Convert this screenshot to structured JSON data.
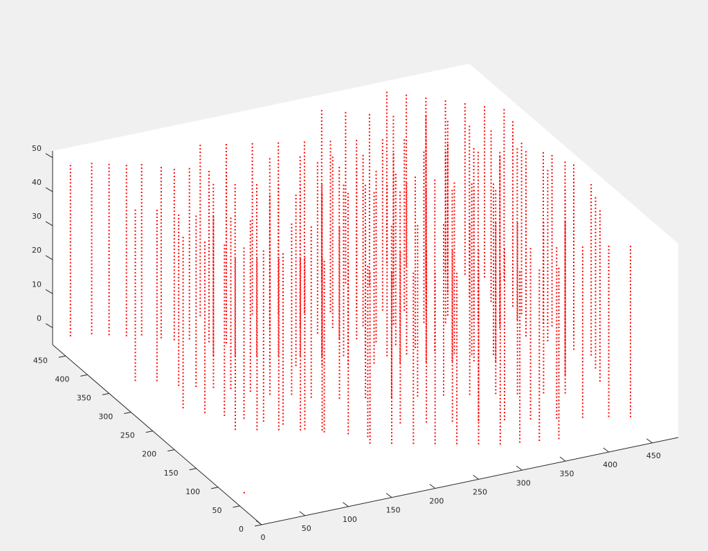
{
  "chart_data": {
    "type": "scatter",
    "projection": "3d",
    "title": "",
    "xlabel": "",
    "ylabel": "",
    "zlabel": "",
    "xlim": [
      0,
      480
    ],
    "ylim": [
      0,
      480
    ],
    "zlim": [
      -5,
      52
    ],
    "x_ticks": [
      "0",
      "50",
      "100",
      "150",
      "200",
      "250",
      "300",
      "350",
      "400",
      "450"
    ],
    "y_ticks": [
      "0",
      "50",
      "100",
      "150",
      "200",
      "250",
      "300",
      "350",
      "400",
      "450"
    ],
    "z_ticks": [
      "0",
      "10",
      "20",
      "30",
      "40",
      "50"
    ],
    "grid": false,
    "marker": "point",
    "marker_color": "#ff0000",
    "background_color": "#f0f0f0",
    "axes_color": "#ffffff",
    "series": [
      {
        "style": "dotted vertical columns, each spanning z from about 0 to 50",
        "points_per_column": 50,
        "columns_xy": [
          [
            8,
            455
          ],
          [
            30,
            450
          ],
          [
            45,
            440
          ],
          [
            60,
            430
          ],
          [
            75,
            425
          ],
          [
            90,
            410
          ],
          [
            100,
            400
          ],
          [
            115,
            395
          ],
          [
            130,
            380
          ],
          [
            145,
            370
          ],
          [
            20,
            330
          ],
          [
            40,
            320
          ],
          [
            55,
            300
          ],
          [
            70,
            290
          ],
          [
            85,
            280
          ],
          [
            100,
            270
          ],
          [
            115,
            255
          ],
          [
            130,
            240
          ],
          [
            150,
            230
          ],
          [
            165,
            215
          ],
          [
            35,
            250
          ],
          [
            50,
            230
          ],
          [
            65,
            215
          ],
          [
            80,
            200
          ],
          [
            95,
            185
          ],
          [
            110,
            170
          ],
          [
            125,
            150
          ],
          [
            140,
            135
          ],
          [
            160,
            120
          ],
          [
            175,
            105
          ],
          [
            150,
            440
          ],
          [
            175,
            430
          ],
          [
            200,
            420
          ],
          [
            225,
            410
          ],
          [
            250,
            400
          ],
          [
            275,
            390
          ],
          [
            300,
            380
          ],
          [
            325,
            370
          ],
          [
            345,
            360
          ],
          [
            365,
            350
          ],
          [
            160,
            300
          ],
          [
            185,
            290
          ],
          [
            210,
            280
          ],
          [
            235,
            270
          ],
          [
            260,
            260
          ],
          [
            285,
            250
          ],
          [
            310,
            240
          ],
          [
            335,
            230
          ],
          [
            355,
            220
          ],
          [
            375,
            210
          ],
          [
            190,
            200
          ],
          [
            215,
            190
          ],
          [
            240,
            180
          ],
          [
            265,
            170
          ],
          [
            290,
            160
          ],
          [
            315,
            150
          ],
          [
            340,
            140
          ],
          [
            360,
            130
          ],
          [
            385,
            120
          ],
          [
            405,
            110
          ],
          [
            220,
            120
          ],
          [
            245,
            110
          ],
          [
            270,
            100
          ],
          [
            295,
            90
          ],
          [
            320,
            80
          ],
          [
            345,
            70
          ],
          [
            370,
            60
          ],
          [
            395,
            50
          ],
          [
            420,
            40
          ],
          [
            440,
            30
          ],
          [
            380,
            470
          ],
          [
            395,
            455
          ],
          [
            410,
            440
          ],
          [
            425,
            425
          ],
          [
            440,
            410
          ],
          [
            455,
            395
          ],
          [
            470,
            380
          ],
          [
            465,
            350
          ],
          [
            450,
            320
          ],
          [
            440,
            290
          ],
          [
            390,
            400
          ],
          [
            405,
            380
          ],
          [
            420,
            360
          ],
          [
            435,
            340
          ],
          [
            450,
            300
          ],
          [
            460,
            270
          ],
          [
            470,
            240
          ],
          [
            455,
            210
          ],
          [
            440,
            180
          ],
          [
            425,
            150
          ],
          [
            300,
            460
          ],
          [
            320,
            445
          ],
          [
            340,
            430
          ],
          [
            360,
            415
          ],
          [
            380,
            330
          ],
          [
            400,
            310
          ],
          [
            415,
            280
          ],
          [
            430,
            250
          ],
          [
            445,
            230
          ],
          [
            460,
            200
          ],
          [
            240,
            350
          ],
          [
            255,
            330
          ],
          [
            270,
            320
          ],
          [
            285,
            305
          ],
          [
            300,
            290
          ],
          [
            315,
            275
          ],
          [
            330,
            260
          ],
          [
            345,
            245
          ],
          [
            360,
            235
          ],
          [
            380,
            225
          ],
          [
            120,
            350
          ],
          [
            140,
            340
          ],
          [
            160,
            330
          ],
          [
            180,
            320
          ],
          [
            200,
            310
          ],
          [
            220,
            300
          ],
          [
            240,
            290
          ],
          [
            260,
            280
          ],
          [
            280,
            270
          ],
          [
            300,
            265
          ],
          [
            60,
            180
          ],
          [
            80,
            170
          ],
          [
            100,
            160
          ],
          [
            120,
            150
          ],
          [
            140,
            140
          ],
          [
            170,
            90
          ],
          [
            190,
            80
          ],
          [
            210,
            70
          ],
          [
            230,
            60
          ],
          [
            250,
            50
          ],
          [
            270,
            40
          ],
          [
            290,
            30
          ],
          [
            310,
            25
          ],
          [
            330,
            20
          ],
          [
            350,
            15
          ],
          [
            200,
            380
          ],
          [
            230,
            370
          ],
          [
            260,
            355
          ],
          [
            290,
            345
          ],
          [
            320,
            335
          ],
          [
            350,
            325
          ],
          [
            370,
            315
          ],
          [
            400,
            300
          ],
          [
            420,
            290
          ],
          [
            445,
            280
          ],
          [
            465,
            260
          ],
          [
            475,
            230
          ],
          [
            470,
            180
          ],
          [
            460,
            150
          ],
          [
            450,
            120
          ]
        ],
        "extra_points_xyz": [
          [
            0,
            40,
            0
          ]
        ]
      }
    ]
  }
}
